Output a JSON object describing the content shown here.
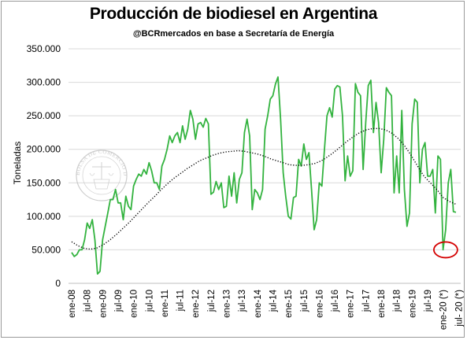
{
  "chart_data": {
    "type": "line",
    "title": "Producción de biodiesel en Argentina",
    "subtitle": "@BCRmercados en base a Secretaría de Energía",
    "ylabel": "Toneladas",
    "xlabel": "",
    "ylim": [
      0,
      350000
    ],
    "yticks": [
      "0",
      "50.000",
      "100.000",
      "150.000",
      "200.000",
      "250.000",
      "300.000",
      "350.000"
    ],
    "ytick_values": [
      0,
      50000,
      100000,
      150000,
      200000,
      250000,
      300000,
      350000
    ],
    "xticks": [
      "ene-08",
      "jul-08",
      "ene-09",
      "jul-09",
      "ene-10",
      "jul-10",
      "ene-11",
      "jul-11",
      "ene-12",
      "jul-12",
      "ene-13",
      "jul-13",
      "ene-14",
      "jul-14",
      "ene-15",
      "jul-15",
      "ene-16",
      "jul-16",
      "ene-17",
      "jul-17",
      "ene-18",
      "jul-18",
      "ene-19",
      "jul-19",
      "ene-20 (*)",
      "jul- 20 (*)"
    ],
    "grid": true,
    "series": [
      {
        "name": "",
        "color": "#33b33f",
        "style": "solid",
        "values": [
          46000,
          40000,
          43000,
          50000,
          50000,
          65000,
          90000,
          82000,
          95000,
          65000,
          14000,
          18000,
          65000,
          85000,
          105000,
          125000,
          125000,
          140000,
          120000,
          120000,
          95000,
          130000,
          115000,
          110000,
          145000,
          155000,
          163000,
          160000,
          170000,
          163000,
          180000,
          168000,
          150000,
          150000,
          140000,
          175000,
          185000,
          200000,
          220000,
          210000,
          220000,
          225000,
          210000,
          235000,
          215000,
          230000,
          258000,
          245000,
          215000,
          238000,
          240000,
          233000,
          246000,
          238000,
          133000,
          136000,
          152000,
          140000,
          150000,
          113000,
          115000,
          160000,
          130000,
          165000,
          120000,
          155000,
          165000,
          225000,
          245000,
          220000,
          110000,
          140000,
          135000,
          125000,
          140000,
          230000,
          250000,
          275000,
          280000,
          297000,
          308000,
          245000,
          165000,
          130000,
          100000,
          96000,
          128000,
          130000,
          185000,
          175000,
          208000,
          185000,
          195000,
          140000,
          80000,
          95000,
          150000,
          145000,
          200000,
          250000,
          262000,
          248000,
          290000,
          295000,
          293000,
          250000,
          153000,
          190000,
          160000,
          168000,
          298000,
          285000,
          280000,
          170000,
          240000,
          295000,
          303000,
          225000,
          270000,
          240000,
          165000,
          215000,
          292000,
          285000,
          280000,
          135000,
          190000,
          135000,
          258000,
          140000,
          85000,
          105000,
          238000,
          275000,
          270000,
          150000,
          200000,
          210000,
          160000,
          160000,
          170000,
          105000,
          190000,
          185000,
          50000,
          80000,
          150000,
          170000,
          107000,
          106000
        ]
      },
      {
        "name": "",
        "color": "#000000",
        "style": "dotted",
        "values": [
          62000,
          56000,
          52000,
          51000,
          53000,
          58000,
          65000,
          73000,
          82000,
          91000,
          101000,
          111000,
          121000,
          130000,
          140000,
          149000,
          157000,
          164000,
          171000,
          177000,
          183000,
          187000,
          191000,
          194000,
          196000,
          197000,
          198000,
          197000,
          195000,
          193000,
          190000,
          186000,
          183000,
          180000,
          177000,
          176000,
          176000,
          177000,
          179000,
          183000,
          189000,
          196000,
          204000,
          212000,
          219000,
          225000,
          229000,
          231000,
          231000,
          229000,
          224000,
          216000,
          205000,
          191000,
          175000,
          160000,
          150000,
          140000,
          128000,
          122000,
          118000
        ]
      }
    ],
    "annotations": [
      {
        "type": "circle",
        "color": "#d40000",
        "x_index": 145,
        "y": 50000
      }
    ]
  },
  "watermark": {
    "text": "BOLSA DE COMERCIO DE ROSARIO",
    "color": "#b9b9b9"
  }
}
